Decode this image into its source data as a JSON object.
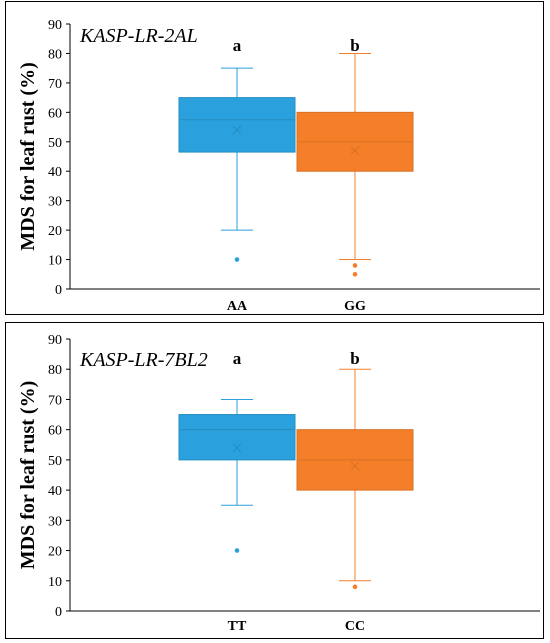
{
  "chart_data": [
    {
      "type": "box",
      "title": "KASP-LR-2AL",
      "ylabel": "MDS for leaf rust (%)",
      "xlabel": "",
      "ylim": [
        0,
        90
      ],
      "yticks": [
        0,
        10,
        20,
        30,
        40,
        50,
        60,
        70,
        80,
        90
      ],
      "grid": false,
      "categories": [
        "AA",
        "GG"
      ],
      "series": [
        {
          "color": "#2AA0DC",
          "q1": 46.5,
          "median": 57.5,
          "q3": 65,
          "mean": 54,
          "whisker_low": 20,
          "whisker_high": 75,
          "outliers": [
            10
          ],
          "significance": "a"
        },
        {
          "color": "#F57F29",
          "q1": 40,
          "median": 50,
          "q3": 60,
          "mean": 47,
          "whisker_low": 10,
          "whisker_high": 80,
          "outliers": [
            8,
            5
          ],
          "significance": "b"
        }
      ]
    },
    {
      "type": "box",
      "title": "KASP-LR-7BL2",
      "ylabel": "MDS for leaf rust (%)",
      "xlabel": "",
      "ylim": [
        0,
        90
      ],
      "yticks": [
        0,
        10,
        20,
        30,
        40,
        50,
        60,
        70,
        80,
        90
      ],
      "grid": false,
      "categories": [
        "TT",
        "CC"
      ],
      "series": [
        {
          "color": "#2AA0DC",
          "q1": 50,
          "median": 60,
          "q3": 65,
          "mean": 54,
          "whisker_low": 35,
          "whisker_high": 70,
          "outliers": [
            20
          ],
          "significance": "a"
        },
        {
          "color": "#F57F29",
          "q1": 40,
          "median": 50,
          "q3": 60,
          "mean": 48,
          "whisker_low": 10,
          "whisker_high": 80,
          "outliers": [
            8
          ],
          "significance": "b"
        }
      ]
    }
  ]
}
